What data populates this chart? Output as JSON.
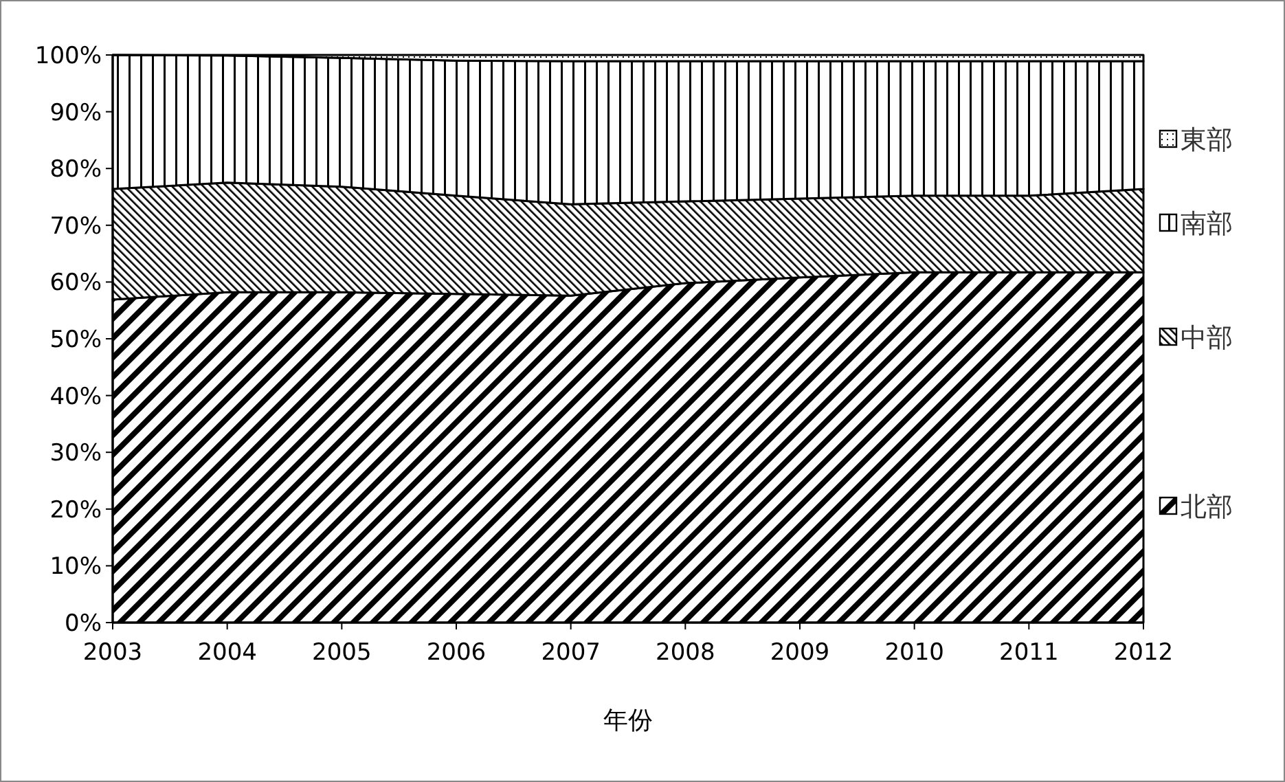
{
  "chart_data": {
    "type": "area",
    "stacked": true,
    "xlabel": "年份",
    "x": [
      2003,
      2004,
      2005,
      2006,
      2007,
      2008,
      2009,
      2010,
      2011,
      2012
    ],
    "series": [
      {
        "name": "北部",
        "color": "#000000",
        "values": [
          56.9,
          58.2,
          58.2,
          57.9,
          57.6,
          59.8,
          60.8,
          61.7,
          61.7,
          61.7
        ]
      },
      {
        "name": "中部",
        "color": "#000000",
        "values": [
          19.5,
          19.3,
          18.6,
          17.3,
          16.1,
          14.4,
          13.9,
          13.5,
          13.5,
          14.7
        ]
      },
      {
        "name": "南部",
        "color": "#000000",
        "values": [
          23.6,
          22.4,
          22.7,
          23.8,
          25.2,
          24.7,
          24.2,
          23.7,
          23.7,
          22.5
        ]
      },
      {
        "name": "東部",
        "color": "#000000",
        "values": [
          0,
          0.1,
          0.5,
          1,
          1.1,
          1.1,
          1.1,
          1.1,
          1.1,
          1.1
        ]
      }
    ],
    "xlim": [
      2003,
      2012
    ],
    "xticks": [
      2003,
      2004,
      2005,
      2006,
      2007,
      2008,
      2009,
      2010,
      2011,
      2012
    ],
    "ylim": [
      0,
      100
    ],
    "yticks": [
      {
        "value": 0,
        "label": "0%"
      },
      {
        "value": 10,
        "label": "10%"
      },
      {
        "value": 20,
        "label": "20%"
      },
      {
        "value": 30,
        "label": "30%"
      },
      {
        "value": 40,
        "label": "40%"
      },
      {
        "value": 50,
        "label": "50%"
      },
      {
        "value": 60,
        "label": "60%"
      },
      {
        "value": 70,
        "label": "70%"
      },
      {
        "value": 80,
        "label": "80%"
      },
      {
        "value": 90,
        "label": "90%"
      },
      {
        "value": 100,
        "label": "100%"
      }
    ],
    "grid": false,
    "legend": "right"
  }
}
